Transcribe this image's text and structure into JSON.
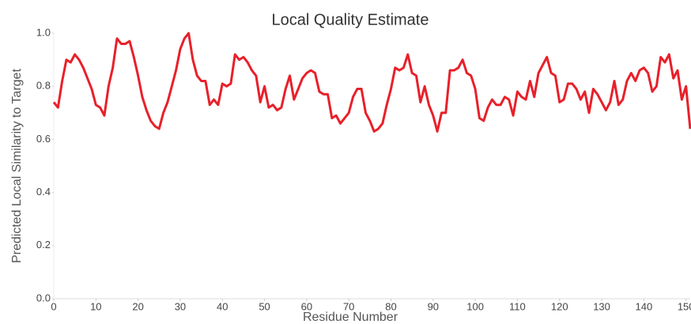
{
  "chart_data": {
    "type": "line",
    "title": "Local Quality Estimate",
    "x_label": "Residue Number",
    "y_label": "Predicted Local Similarity to Target",
    "x": [
      0,
      1,
      2,
      3,
      4,
      5,
      6,
      7,
      8,
      9,
      10,
      11,
      12,
      13,
      14,
      15,
      16,
      17,
      18,
      19,
      20,
      21,
      22,
      23,
      24,
      25,
      26,
      27,
      28,
      29,
      30,
      31,
      32,
      33,
      34,
      35,
      36,
      37,
      38,
      39,
      40,
      41,
      42,
      43,
      44,
      45,
      46,
      47,
      48,
      49,
      50,
      51,
      52,
      53,
      54,
      55,
      56,
      57,
      58,
      59,
      60,
      61,
      62,
      63,
      64,
      65,
      66,
      67,
      68,
      69,
      70,
      71,
      72,
      73,
      74,
      75,
      76,
      77,
      78,
      79,
      80,
      81,
      82,
      83,
      84,
      85,
      86,
      87,
      88,
      89,
      90,
      91,
      92,
      93,
      94,
      95,
      96,
      97,
      98,
      99,
      100,
      101,
      102,
      103,
      104,
      105,
      106,
      107,
      108,
      109,
      110,
      111,
      112,
      113,
      114,
      115,
      116,
      117,
      118,
      119,
      120,
      121,
      122,
      123,
      124,
      125,
      126,
      127,
      128,
      129,
      130,
      131,
      132,
      133,
      134,
      135,
      136,
      137,
      138,
      139,
      140,
      141,
      142,
      143,
      144,
      145,
      146,
      147,
      148,
      149,
      150,
      151
    ],
    "series": [
      {
        "color": "#e8202a",
        "values": [
          0.74,
          0.72,
          0.82,
          0.9,
          0.89,
          0.92,
          0.9,
          0.87,
          0.83,
          0.79,
          0.73,
          0.72,
          0.69,
          0.8,
          0.87,
          0.98,
          0.96,
          0.96,
          0.97,
          0.91,
          0.84,
          0.76,
          0.71,
          0.67,
          0.65,
          0.64,
          0.7,
          0.74,
          0.8,
          0.86,
          0.94,
          0.98,
          1.0,
          0.9,
          0.84,
          0.82,
          0.82,
          0.73,
          0.75,
          0.73,
          0.81,
          0.8,
          0.81,
          0.92,
          0.9,
          0.91,
          0.89,
          0.86,
          0.84,
          0.74,
          0.8,
          0.72,
          0.73,
          0.71,
          0.72,
          0.79,
          0.84,
          0.75,
          0.79,
          0.83,
          0.85,
          0.86,
          0.85,
          0.78,
          0.77,
          0.77,
          0.68,
          0.69,
          0.66,
          0.68,
          0.7,
          0.76,
          0.79,
          0.79,
          0.7,
          0.67,
          0.63,
          0.64,
          0.66,
          0.73,
          0.79,
          0.87,
          0.86,
          0.87,
          0.92,
          0.85,
          0.84,
          0.74,
          0.8,
          0.73,
          0.69,
          0.63,
          0.7,
          0.7,
          0.86,
          0.86,
          0.87,
          0.9,
          0.85,
          0.84,
          0.79,
          0.68,
          0.67,
          0.72,
          0.75,
          0.73,
          0.73,
          0.76,
          0.75,
          0.69,
          0.78,
          0.76,
          0.75,
          0.82,
          0.76,
          0.85,
          0.88,
          0.91,
          0.85,
          0.84,
          0.74,
          0.75,
          0.81,
          0.81,
          0.79,
          0.75,
          0.78,
          0.7,
          0.79,
          0.77,
          0.74,
          0.71,
          0.74,
          0.82,
          0.73,
          0.75,
          0.82,
          0.85,
          0.82,
          0.86,
          0.87,
          0.85,
          0.78,
          0.8,
          0.91,
          0.89,
          0.92,
          0.83,
          0.86,
          0.75,
          0.8,
          0.64
        ]
      }
    ],
    "xlim": [
      0,
      151
    ],
    "xticks": [
      0,
      10,
      20,
      30,
      40,
      50,
      60,
      70,
      80,
      90,
      100,
      110,
      120,
      130,
      140,
      150
    ],
    "ylim": [
      0,
      1
    ],
    "yticks": [
      {
        "value": 0,
        "label": "0.0"
      },
      0.2,
      0.4,
      0.6,
      0.8,
      {
        "value": 1,
        "label": "1.0"
      }
    ],
    "grid": false
  }
}
